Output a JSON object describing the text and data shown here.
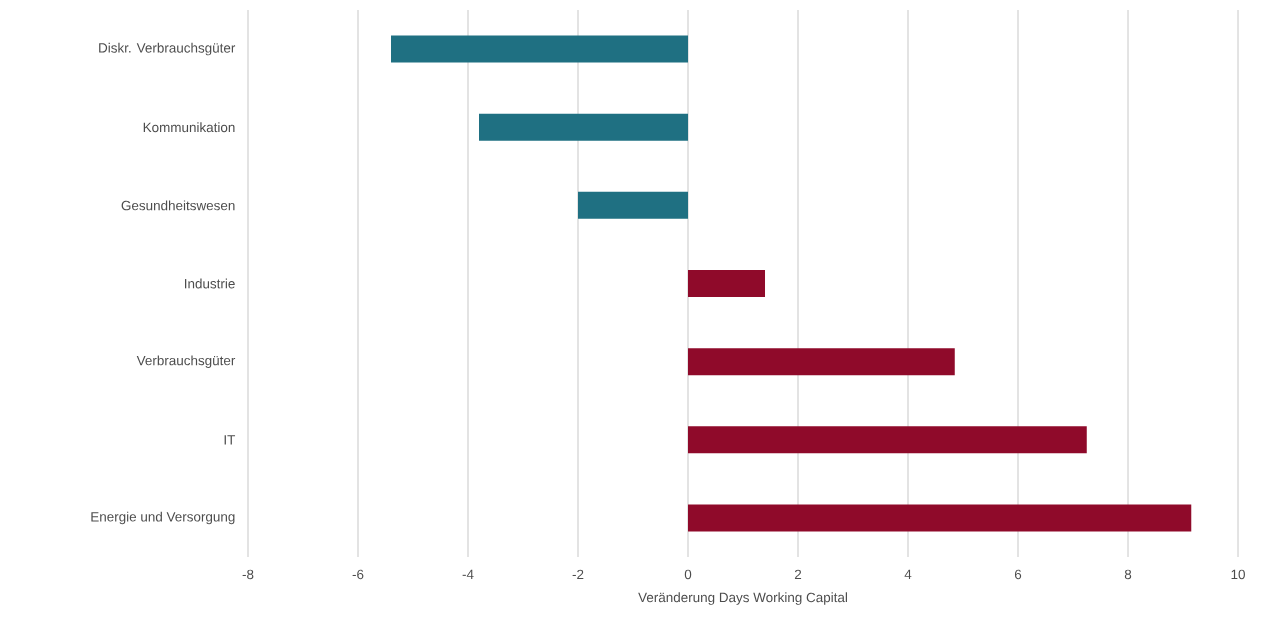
{
  "chart_data": {
    "type": "bar",
    "orientation": "horizontal",
    "xlabel": "Veränderung Days Working Capital",
    "categories": [
      "Diskr. Verbrauchsgüter",
      "Kommunikation",
      "Gesundheitswesen",
      "Industrie",
      "Verbrauchsgüter",
      "IT",
      "Energie und Versorgung"
    ],
    "values": [
      -5.4,
      -3.8,
      -2.0,
      1.4,
      4.85,
      7.25,
      9.15
    ],
    "colors": [
      "#1f7082",
      "#1f7082",
      "#1f7082",
      "#8f0a2a",
      "#8f0a2a",
      "#8f0a2a",
      "#8f0a2a"
    ],
    "xlim": [
      -8,
      10
    ],
    "xticks": [
      -8,
      -6,
      -4,
      -2,
      0,
      2,
      4,
      6,
      8,
      10
    ],
    "grid": "x"
  }
}
